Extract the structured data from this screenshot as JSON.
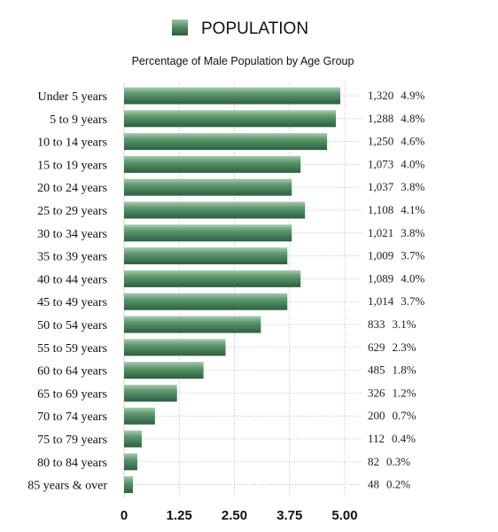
{
  "legend": {
    "label": "POPULATION",
    "color": "#4e8a63"
  },
  "chart_data": {
    "type": "bar",
    "orientation": "horizontal",
    "title": "POPULATION",
    "subtitle": "Percentage of Male Population by Age Group",
    "categories": [
      "Under 5 years",
      "5 to 9 years",
      "10 to 14 years",
      "15 to 19 years",
      "20 to 24 years",
      "25 to 29 years",
      "30 to 34 years",
      "35 to 39 years",
      "40 to 44 years",
      "45 to 49 years",
      "50 to 54 years",
      "55 to 59 years",
      "60 to 64 years",
      "65 to 69 years",
      "70 to 74 years",
      "75 to 79 years",
      "80 to 84 years",
      "85 years & over"
    ],
    "series": [
      {
        "name": "POPULATION",
        "values": [
          4.9,
          4.8,
          4.6,
          4.0,
          3.8,
          4.1,
          3.8,
          3.7,
          4.0,
          3.7,
          3.1,
          2.3,
          1.8,
          1.2,
          0.7,
          0.4,
          0.3,
          0.2
        ],
        "counts": [
          "1,320",
          "1,288",
          "1,250",
          "1,073",
          "1,037",
          "1,108",
          "1,021",
          "1,009",
          "1,089",
          "1,014",
          "833",
          "629",
          "485",
          "326",
          "200",
          "112",
          "82",
          "48"
        ],
        "percent_labels": [
          "4.9%",
          "4.8%",
          "4.6%",
          "4.0%",
          "3.8%",
          "4.1%",
          "3.8%",
          "3.7%",
          "4.0%",
          "3.7%",
          "3.1%",
          "2.3%",
          "1.8%",
          "1.2%",
          "0.7%",
          "0.4%",
          "0.3%",
          "0.2%"
        ]
      }
    ],
    "xlim": [
      0,
      5
    ],
    "xticks": [
      0,
      1.25,
      2.5,
      3.75,
      5.0
    ],
    "xtick_labels": [
      "0",
      "1.25",
      "2.50",
      "3.75",
      "5.00"
    ],
    "grid": true,
    "legend_position": "top",
    "bar_color": "#4e8a63"
  }
}
